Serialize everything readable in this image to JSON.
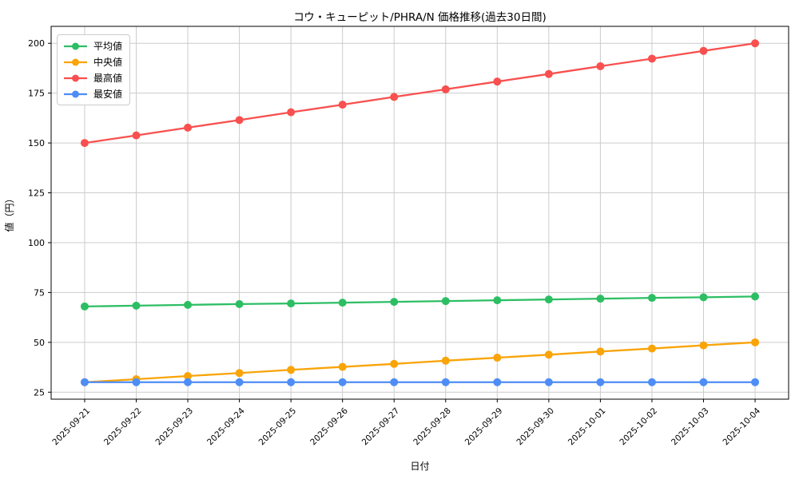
{
  "chart_data": {
    "type": "line",
    "title": "コウ・キューピット/PHRA/N 価格推移(過去30日間)",
    "xlabel": "日付",
    "ylabel": "値（円）",
    "grid": true,
    "legend_position": "upper left",
    "ylim": [
      21.5,
      208.5
    ],
    "yticks": [
      25,
      50,
      75,
      100,
      125,
      150,
      175,
      200
    ],
    "categories": [
      "2025-09-21",
      "2025-09-22",
      "2025-09-23",
      "2025-09-24",
      "2025-09-25",
      "2025-09-26",
      "2025-09-27",
      "2025-09-28",
      "2025-09-29",
      "2025-09-30",
      "2025-10-01",
      "2025-10-02",
      "2025-10-03",
      "2025-10-04"
    ],
    "series": [
      {
        "key": "average",
        "name": "平均値",
        "color": "#2dbe64",
        "values": [
          68.0,
          68.4,
          68.8,
          69.2,
          69.5,
          69.9,
          70.3,
          70.7,
          71.1,
          71.5,
          71.9,
          72.3,
          72.6,
          73.0
        ]
      },
      {
        "key": "median",
        "name": "中央値",
        "color": "#f9a408",
        "values": [
          30.0,
          31.5,
          33.1,
          34.6,
          36.2,
          37.7,
          39.2,
          40.8,
          42.3,
          43.8,
          45.4,
          46.9,
          48.5,
          50.0
        ]
      },
      {
        "key": "highest",
        "name": "最高値",
        "color": "#f8504f",
        "values": [
          150.0,
          153.8,
          157.7,
          161.5,
          165.4,
          169.2,
          173.1,
          176.9,
          180.8,
          184.6,
          188.5,
          192.3,
          196.2,
          200.0
        ]
      },
      {
        "key": "lowest",
        "name": "最安値",
        "color": "#4e8df6",
        "values": [
          30,
          30,
          30,
          30,
          30,
          30,
          30,
          30,
          30,
          30,
          30,
          30,
          30,
          30
        ]
      }
    ]
  }
}
